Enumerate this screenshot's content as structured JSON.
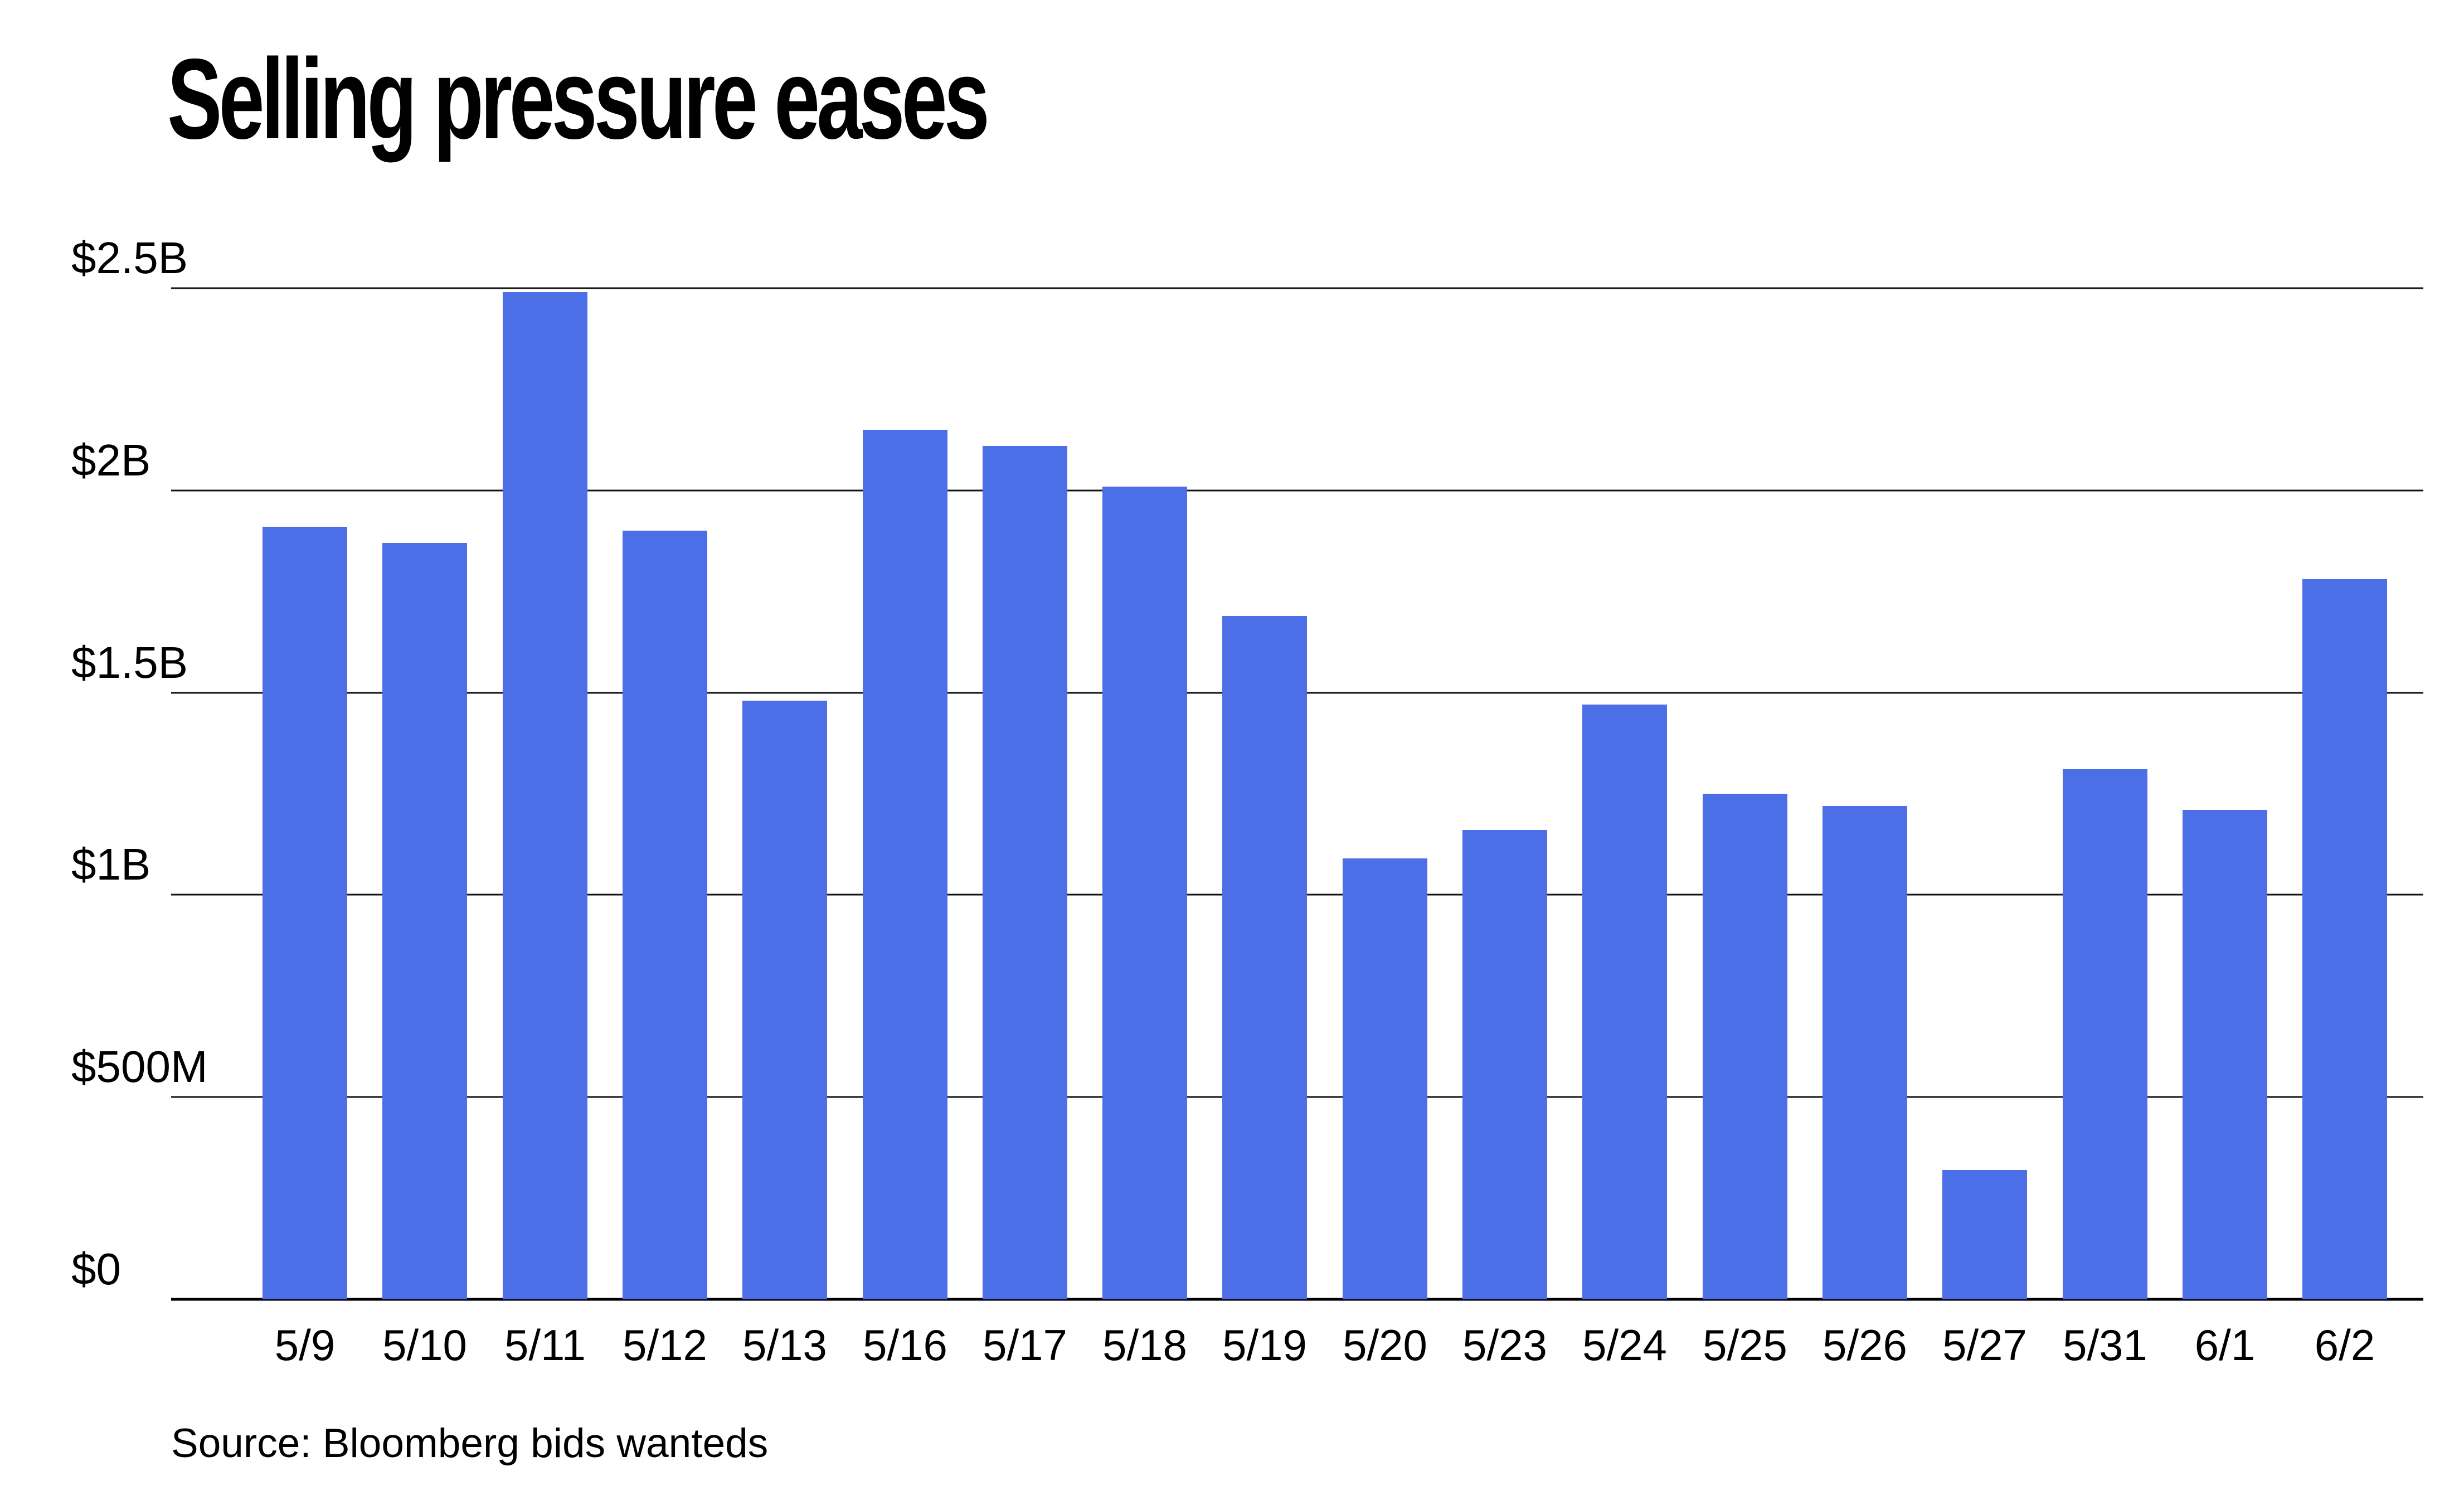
{
  "title": "Selling pressure eases",
  "source_note": "Source: Bloomberg bids wanteds",
  "bar_color": "#4C6EE7",
  "chart_data": {
    "type": "bar",
    "title": "Selling pressure eases",
    "xlabel": "",
    "ylabel": "",
    "unit": "USD",
    "categories": [
      "5/9",
      "5/10",
      "5/11",
      "5/12",
      "5/13",
      "5/16",
      "5/17",
      "5/18",
      "5/19",
      "5/20",
      "5/23",
      "5/24",
      "5/25",
      "5/26",
      "5/27",
      "5/31",
      "6/1",
      "6/2"
    ],
    "values": [
      1.91,
      1.87,
      2.49,
      1.9,
      1.48,
      2.15,
      2.11,
      2.01,
      1.69,
      1.09,
      1.16,
      1.47,
      1.25,
      1.22,
      0.32,
      1.31,
      1.21,
      1.78
    ],
    "values_unit": "billions of dollars",
    "ylim": [
      0,
      2.5
    ],
    "y_ticks": [
      {
        "label": "$0",
        "value": 0
      },
      {
        "label": "$500M",
        "value": 0.5
      },
      {
        "label": "$1B",
        "value": 1.0
      },
      {
        "label": "$1.5B",
        "value": 1.5
      },
      {
        "label": "$2B",
        "value": 2.0
      },
      {
        "label": "$2.5B",
        "value": 2.5
      }
    ],
    "grid": true,
    "legend": "none",
    "source": "Source: Bloomberg bids wanteds"
  }
}
